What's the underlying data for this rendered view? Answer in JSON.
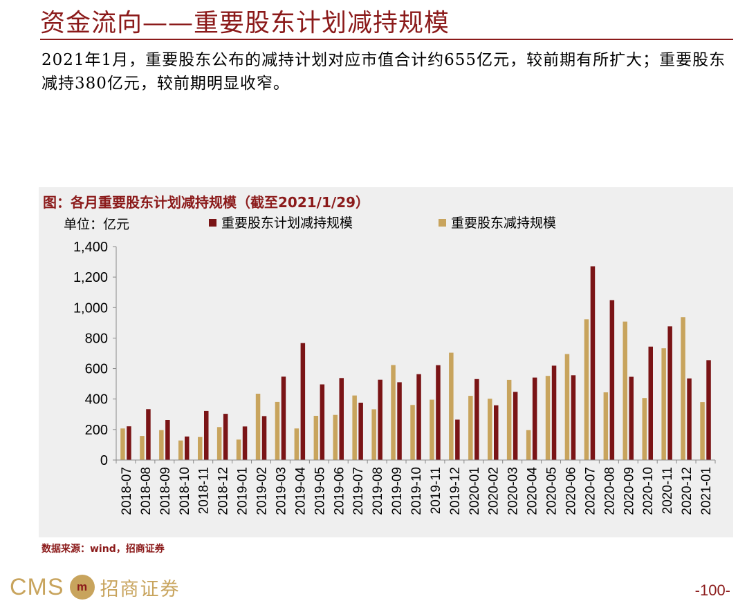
{
  "page": {
    "title": "资金流向——重要股东计划减持规模",
    "summary": "2021年1月，重要股东公布的减持计划对应市值合计约655亿元，较前期有所扩大；重要股东减持380亿元，较前期明显收窄。",
    "source": "数据来源：wind，招商证券",
    "page_number": "-100-",
    "logo_text": "CMS",
    "logo_badge": "m",
    "logo_cn": "招商证券"
  },
  "colors": {
    "accent": "#8B1A1A",
    "planned": "#7a1416",
    "actual": "#c8a45d",
    "panel": "#efefef"
  },
  "chart_data": {
    "type": "bar",
    "title": "图：各月重要股东计划减持规模（截至2021/1/29）",
    "unit_label": "单位：亿元",
    "ylim": [
      0,
      1400
    ],
    "yticks": [
      0,
      200,
      400,
      600,
      800,
      1000,
      1200,
      1400
    ],
    "ytick_labels": [
      "0",
      "200",
      "400",
      "600",
      "800",
      "1,000",
      "1,200",
      "1,400"
    ],
    "grid": false,
    "legend_position": "top",
    "categories": [
      "2018-07",
      "2018-08",
      "2018-09",
      "2018-10",
      "2018-11",
      "2018-12",
      "2019-01",
      "2019-02",
      "2019-03",
      "2019-04",
      "2019-05",
      "2019-06",
      "2019-07",
      "2019-08",
      "2019-09",
      "2019-10",
      "2019-11",
      "2019-12",
      "2020-01",
      "2020-02",
      "2020-03",
      "2020-04",
      "2020-05",
      "2020-06",
      "2020-07",
      "2020-08",
      "2020-09",
      "2020-10",
      "2020-11",
      "2020-12",
      "2021-01"
    ],
    "series": [
      {
        "name": "重要股东减持规模",
        "color": "#c8a45d",
        "values": [
          207,
          158,
          196,
          128,
          151,
          216,
          134,
          435,
          381,
          207,
          290,
          296,
          423,
          333,
          623,
          361,
          396,
          704,
          421,
          402,
          526,
          196,
          552,
          695,
          923,
          444,
          908,
          407,
          733,
          937,
          380
        ]
      },
      {
        "name": "重要股东计划减持规模",
        "color": "#7a1416",
        "values": [
          221,
          334,
          263,
          154,
          322,
          303,
          220,
          288,
          547,
          767,
          496,
          538,
          376,
          527,
          510,
          563,
          622,
          265,
          531,
          359,
          447,
          541,
          619,
          556,
          1271,
          1049,
          546,
          744,
          877,
          535,
          655
        ]
      }
    ],
    "legend_order": [
      "重要股东计划减持规模",
      "重要股东减持规模"
    ]
  }
}
